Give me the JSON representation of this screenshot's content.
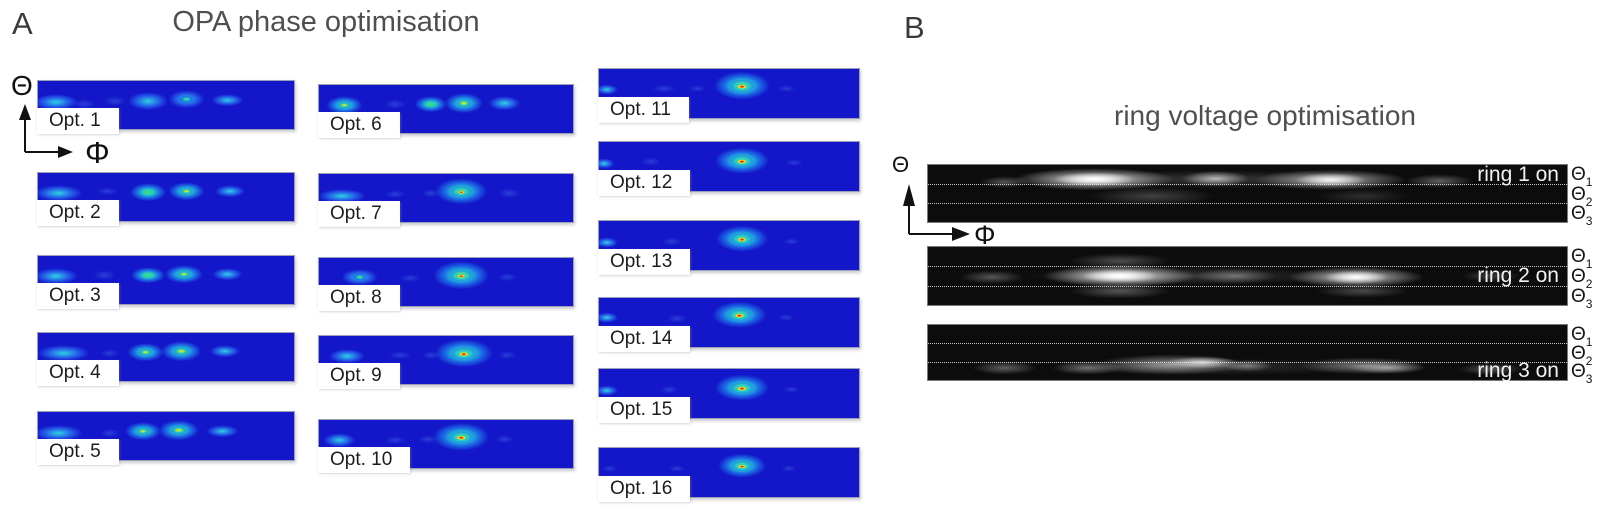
{
  "colors": {
    "page_background": "#ffffff",
    "title_text": "#4f4f4f",
    "panel_letter_text": "#3a3a3a",
    "subplot_label_text": "#1c1c1c",
    "ring_label_text": "#f2f2f2",
    "heatmap_background_blue": "#1317c9",
    "strip_background_black": "#0c0c0c"
  },
  "palette": {
    "jet": {
      "peak": [
        "#8c0b04",
        "#e03505",
        "#fb9006",
        "#f2e52e",
        "#7be05c",
        "#1ec9dd"
      ],
      "hot": [
        "#f2e52e",
        "#a8e03c",
        "#35d6a8",
        "#1fa0e0"
      ],
      "mid": [
        "#4fdc68",
        "#20cfc0",
        "#1e72e8"
      ],
      "low": [
        "#2ed1e4",
        "#2458e8"
      ],
      "faint": [
        "#2a3fd8"
      ]
    }
  },
  "chart_data": [
    {
      "type": "heatmap",
      "panel_label": "A",
      "title": "OPA phase optimisation",
      "xlabel": "Φ",
      "ylabel": "Θ",
      "colormap": "jet",
      "background": "#1317c9",
      "blob_format": "[x_percent, y_percent, radius_x_px, radius_y_px, intensity_level]",
      "panels": [
        {
          "label": "Opt. 1",
          "blobs": [
            [
              7,
              44,
              22,
              8,
              "low"
            ],
            [
              18,
              48,
              14,
              6,
              "faint"
            ],
            [
              30,
              42,
              14,
              6,
              "faint"
            ],
            [
              43,
              42,
              20,
              9,
              "low"
            ],
            [
              58,
              38,
              18,
              9,
              "low"
            ],
            [
              58,
              38,
              8,
              4,
              "mid"
            ],
            [
              74,
              40,
              16,
              6,
              "low"
            ]
          ]
        },
        {
          "label": "Opt. 2",
          "blobs": [
            [
              8,
              42,
              24,
              8,
              "low"
            ],
            [
              27,
              38,
              13,
              5,
              "faint"
            ],
            [
              43,
              40,
              18,
              9,
              "mid"
            ],
            [
              58,
              38,
              18,
              9,
              "mid"
            ],
            [
              58,
              38,
              8,
              4,
              "hot"
            ],
            [
              75,
              38,
              15,
              6,
              "low"
            ]
          ]
        },
        {
          "label": "Opt. 3",
          "blobs": [
            [
              7,
              42,
              22,
              8,
              "low"
            ],
            [
              26,
              40,
              14,
              6,
              "faint"
            ],
            [
              43,
              40,
              17,
              8,
              "mid"
            ],
            [
              57,
              38,
              19,
              9,
              "mid"
            ],
            [
              57,
              38,
              8,
              4,
              "hot"
            ],
            [
              74,
              38,
              15,
              6,
              "low"
            ]
          ]
        },
        {
          "label": "Opt. 4",
          "blobs": [
            [
              10,
              42,
              26,
              8,
              "low"
            ],
            [
              28,
              42,
              12,
              5,
              "faint"
            ],
            [
              42,
              40,
              18,
              9,
              "mid"
            ],
            [
              42,
              40,
              8,
              4,
              "hot"
            ],
            [
              56,
              38,
              20,
              10,
              "mid"
            ],
            [
              56,
              38,
              10,
              5,
              "hot"
            ],
            [
              73,
              38,
              15,
              6,
              "low"
            ]
          ]
        },
        {
          "label": "Opt. 5",
          "blobs": [
            [
              8,
              44,
              24,
              8,
              "low"
            ],
            [
              28,
              44,
              12,
              5,
              "faint"
            ],
            [
              41,
              40,
              18,
              9,
              "mid"
            ],
            [
              41,
              40,
              8,
              4,
              "hot"
            ],
            [
              55,
              38,
              20,
              10,
              "mid"
            ],
            [
              55,
              38,
              10,
              5,
              "hot"
            ],
            [
              72,
              40,
              16,
              6,
              "low"
            ]
          ]
        },
        {
          "label": "Opt. 6",
          "blobs": [
            [
              10,
              42,
              18,
              9,
              "mid"
            ],
            [
              10,
              42,
              8,
              4,
              "hot"
            ],
            [
              30,
              40,
              13,
              6,
              "faint"
            ],
            [
              44,
              40,
              16,
              8,
              "mid"
            ],
            [
              57,
              38,
              19,
              10,
              "mid"
            ],
            [
              57,
              38,
              9,
              5,
              "hot"
            ],
            [
              73,
              38,
              16,
              7,
              "low"
            ]
          ]
        },
        {
          "label": "Opt. 7",
          "blobs": [
            [
              9,
              46,
              24,
              7,
              "low"
            ],
            [
              30,
              42,
              13,
              5,
              "faint"
            ],
            [
              44,
              40,
              11,
              5,
              "faint"
            ],
            [
              56,
              36,
              26,
              13,
              "mid"
            ],
            [
              56,
              37,
              14,
              7,
              "hot"
            ],
            [
              56,
              38,
              6,
              3,
              "peak"
            ],
            [
              75,
              40,
              14,
              6,
              "faint"
            ]
          ]
        },
        {
          "label": "Opt. 8",
          "blobs": [
            [
              16,
              40,
              18,
              8,
              "low"
            ],
            [
              16,
              40,
              8,
              4,
              "mid"
            ],
            [
              36,
              42,
              13,
              5,
              "faint"
            ],
            [
              56,
              36,
              28,
              14,
              "mid"
            ],
            [
              56,
              37,
              16,
              8,
              "hot"
            ],
            [
              56,
              38,
              8,
              3,
              "peak"
            ],
            [
              74,
              40,
              12,
              5,
              "faint"
            ]
          ]
        },
        {
          "label": "Opt. 9",
          "blobs": [
            [
              11,
              42,
              18,
              7,
              "low"
            ],
            [
              32,
              40,
              14,
              5,
              "faint"
            ],
            [
              44,
              40,
              11,
              5,
              "faint"
            ],
            [
              57,
              36,
              29,
              14,
              "mid"
            ],
            [
              57,
              37,
              17,
              8,
              "hot"
            ],
            [
              57,
              38,
              9,
              4,
              "peak"
            ],
            [
              74,
              40,
              11,
              5,
              "faint"
            ]
          ]
        },
        {
          "label": "Opt. 10",
          "blobs": [
            [
              8,
              42,
              16,
              7,
              "low"
            ],
            [
              30,
              42,
              13,
              5,
              "faint"
            ],
            [
              43,
              40,
              12,
              5,
              "faint"
            ],
            [
              56,
              35,
              28,
              14,
              "mid"
            ],
            [
              56,
              36,
              16,
              8,
              "hot"
            ],
            [
              56,
              37,
              9,
              4,
              "peak"
            ],
            [
              73,
              40,
              11,
              5,
              "faint"
            ]
          ]
        },
        {
          "label": "Opt. 11",
          "blobs": [
            [
              3,
              42,
              11,
              5,
              "low"
            ],
            [
              25,
              40,
              14,
              5,
              "faint"
            ],
            [
              38,
              40,
              11,
              4,
              "faint"
            ],
            [
              55,
              34,
              28,
              14,
              "mid"
            ],
            [
              55,
              35,
              17,
              9,
              "hot"
            ],
            [
              55,
              36,
              9,
              4,
              "peak"
            ],
            [
              72,
              40,
              11,
              4,
              "faint"
            ]
          ]
        },
        {
          "label": "Opt. 12",
          "blobs": [
            [
              2,
              44,
              10,
              5,
              "low"
            ],
            [
              20,
              40,
              12,
              5,
              "faint"
            ],
            [
              55,
              38,
              27,
              13,
              "mid"
            ],
            [
              55,
              39,
              16,
              8,
              "hot"
            ],
            [
              55,
              40,
              9,
              4,
              "peak"
            ],
            [
              75,
              42,
              11,
              4,
              "faint"
            ]
          ]
        },
        {
          "label": "Opt. 13",
          "blobs": [
            [
              3,
              44,
              11,
              5,
              "low"
            ],
            [
              28,
              42,
              12,
              5,
              "faint"
            ],
            [
              55,
              36,
              26,
              13,
              "mid"
            ],
            [
              55,
              37,
              15,
              8,
              "hot"
            ],
            [
              55,
              38,
              8,
              4,
              "peak"
            ],
            [
              74,
              42,
              10,
              4,
              "faint"
            ]
          ]
        },
        {
          "label": "Opt. 14",
          "blobs": [
            [
              3,
              40,
              11,
              5,
              "low"
            ],
            [
              30,
              42,
              12,
              5,
              "faint"
            ],
            [
              54,
              34,
              27,
              13,
              "mid"
            ],
            [
              54,
              35,
              16,
              8,
              "hot"
            ],
            [
              54,
              36,
              9,
              4,
              "peak"
            ],
            [
              72,
              40,
              10,
              4,
              "faint"
            ]
          ]
        },
        {
          "label": "Opt. 15",
          "blobs": [
            [
              3,
              44,
              11,
              5,
              "low"
            ],
            [
              27,
              42,
              11,
              5,
              "faint"
            ],
            [
              55,
              38,
              27,
              13,
              "mid"
            ],
            [
              55,
              39,
              16,
              8,
              "hot"
            ],
            [
              55,
              40,
              9,
              4,
              "peak"
            ],
            [
              74,
              42,
              10,
              4,
              "faint"
            ]
          ]
        },
        {
          "label": "Opt. 16",
          "blobs": [
            [
              4,
              42,
              10,
              4,
              "faint"
            ],
            [
              30,
              42,
              10,
              4,
              "faint"
            ],
            [
              55,
              36,
              24,
              12,
              "mid"
            ],
            [
              55,
              37,
              14,
              7,
              "hot"
            ],
            [
              55,
              38,
              8,
              3,
              "peak"
            ],
            [
              73,
              42,
              9,
              4,
              "faint"
            ]
          ]
        }
      ]
    },
    {
      "type": "heatmap",
      "panel_label": "B",
      "title": "ring voltage optimisation",
      "xlabel": "Φ",
      "ylabel": "Θ",
      "colormap": "grayscale",
      "background": "#0c0c0c",
      "row_labels": [
        {
          "base": "Θ",
          "sub": "1"
        },
        {
          "base": "Θ",
          "sub": "2"
        },
        {
          "base": "Θ",
          "sub": "3"
        }
      ],
      "blob_format": "[x_percent, y_percent, radius_x_px, radius_y_px, peak_alpha]",
      "panels": [
        {
          "label": "ring 1 on",
          "band": 1,
          "blobs": [
            [
              45,
              25,
              180,
              11,
              0.18
            ],
            [
              26,
              25,
              95,
              13,
              0.9
            ],
            [
              26,
              25,
              48,
              8,
              1.0
            ],
            [
              45,
              24,
              40,
              9,
              0.65
            ],
            [
              63,
              26,
              90,
              12,
              0.7
            ],
            [
              63,
              26,
              42,
              8,
              0.85
            ],
            [
              80,
              28,
              40,
              8,
              0.35
            ],
            [
              12,
              30,
              30,
              7,
              0.3
            ],
            [
              35,
              55,
              75,
              11,
              0.22
            ],
            [
              68,
              55,
              55,
              9,
              0.15
            ]
          ]
        },
        {
          "label": "ring 2 on",
          "band": 2,
          "blobs": [
            [
              40,
              50,
              190,
              11,
              0.18
            ],
            [
              30,
              50,
              90,
              13,
              0.95
            ],
            [
              30,
              50,
              45,
              8,
              1.0
            ],
            [
              67,
              52,
              80,
              12,
              0.85
            ],
            [
              67,
              52,
              38,
              8,
              0.95
            ],
            [
              48,
              50,
              48,
              9,
              0.35
            ],
            [
              10,
              52,
              38,
              8,
              0.3
            ],
            [
              30,
              24,
              60,
              9,
              0.28
            ],
            [
              30,
              76,
              60,
              9,
              0.3
            ],
            [
              68,
              76,
              55,
              8,
              0.25
            ],
            [
              88,
              50,
              35,
              7,
              0.2
            ]
          ]
        },
        {
          "label": "ring 3 on",
          "band": 3,
          "blobs": [
            [
              45,
              76,
              200,
              10,
              0.15
            ],
            [
              12,
              78,
              38,
              8,
              0.35
            ],
            [
              25,
              78,
              42,
              8,
              0.4
            ],
            [
              38,
              72,
              90,
              12,
              0.55
            ],
            [
              43,
              68,
              42,
              7,
              0.75
            ],
            [
              50,
              74,
              30,
              7,
              0.4
            ],
            [
              68,
              74,
              75,
              10,
              0.45
            ],
            [
              72,
              78,
              45,
              7,
              0.5
            ],
            [
              88,
              80,
              38,
              7,
              0.3
            ]
          ]
        }
      ]
    }
  ]
}
